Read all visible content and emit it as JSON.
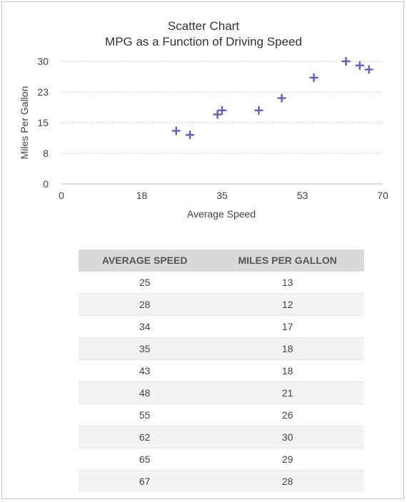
{
  "chart_data": {
    "type": "scatter",
    "title": "Scatter Chart",
    "subtitle": "MPG as a Function of Driving Speed",
    "xlabel": "Average Speed",
    "ylabel": "Miles Per Gallon",
    "xlim": [
      0,
      70
    ],
    "ylim": [
      0,
      30
    ],
    "xticks": [
      0,
      17.5,
      35,
      52.5,
      70
    ],
    "xtick_labels": [
      "0",
      "18",
      "35",
      "53",
      "70"
    ],
    "yticks": [
      0,
      7.5,
      15,
      22.5,
      30
    ],
    "ytick_labels": [
      "0",
      "8",
      "15",
      "23",
      "30"
    ],
    "grid": "horizontal dotted",
    "marker": "plus",
    "marker_color": "#5b5fc7",
    "points": [
      {
        "x": 25,
        "y": 13
      },
      {
        "x": 28,
        "y": 12
      },
      {
        "x": 34,
        "y": 17
      },
      {
        "x": 35,
        "y": 18
      },
      {
        "x": 43,
        "y": 18
      },
      {
        "x": 48,
        "y": 21
      },
      {
        "x": 55,
        "y": 26
      },
      {
        "x": 62,
        "y": 30
      },
      {
        "x": 65,
        "y": 29
      },
      {
        "x": 67,
        "y": 28
      }
    ]
  },
  "table": {
    "headers": [
      "AVERAGE SPEED",
      "MILES PER GALLON"
    ],
    "rows": [
      [
        "25",
        "13"
      ],
      [
        "28",
        "12"
      ],
      [
        "34",
        "17"
      ],
      [
        "35",
        "18"
      ],
      [
        "43",
        "18"
      ],
      [
        "48",
        "21"
      ],
      [
        "55",
        "26"
      ],
      [
        "62",
        "30"
      ],
      [
        "65",
        "29"
      ],
      [
        "67",
        "28"
      ]
    ]
  }
}
